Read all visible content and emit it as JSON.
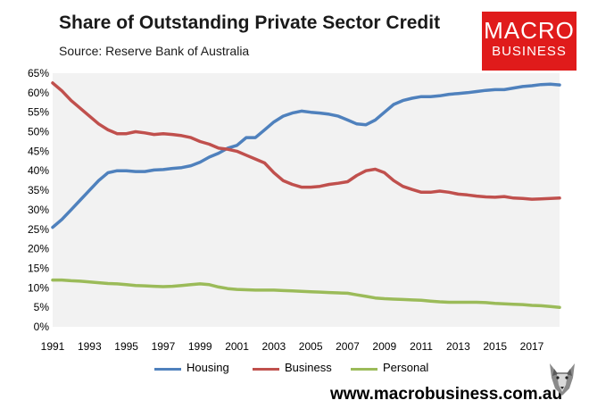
{
  "header": {
    "title": "Share of Outstanding Private Sector Credit",
    "subtitle": "Source: Reserve Bank of Australia"
  },
  "logo": {
    "line1": "MACRO",
    "line2": "BUSINESS"
  },
  "footer": {
    "url": "www.macrobusiness.com.au"
  },
  "colors": {
    "housing": "#4f81bd",
    "business": "#c0504d",
    "personal": "#9bbb59",
    "plot_background": "#f2f2f2",
    "logo_red": "#e01b1b"
  },
  "chart_data": {
    "type": "line",
    "title": "Share of Outstanding Private Sector Credit",
    "subtitle": "Source: Reserve Bank of Australia",
    "xlim": [
      1991,
      2018.5
    ],
    "ylim": [
      0,
      65
    ],
    "x_ticks": [
      1991,
      1993,
      1995,
      1997,
      1999,
      2001,
      2003,
      2005,
      2007,
      2009,
      2011,
      2013,
      2015,
      2017
    ],
    "y_ticks": [
      0,
      5,
      10,
      15,
      20,
      25,
      30,
      35,
      40,
      45,
      50,
      55,
      60,
      65
    ],
    "y_tick_labels": [
      "0%",
      "5%",
      "10%",
      "15%",
      "20%",
      "25%",
      "30%",
      "35%",
      "40%",
      "45%",
      "50%",
      "55%",
      "60%",
      "65%"
    ],
    "grid": false,
    "legend": "bottom",
    "series": [
      {
        "name": "Housing",
        "color": "#4f81bd",
        "x": [
          1991,
          1991.5,
          1992,
          1992.5,
          1993,
          1993.5,
          1994,
          1994.5,
          1995,
          1995.5,
          1996,
          1996.5,
          1997,
          1997.5,
          1998,
          1998.5,
          1999,
          1999.5,
          2000,
          2000.5,
          2001,
          2001.5,
          2002,
          2002.5,
          2003,
          2003.5,
          2004,
          2004.5,
          2005,
          2005.5,
          2006,
          2006.5,
          2007,
          2007.5,
          2008,
          2008.5,
          2009,
          2009.5,
          2010,
          2010.5,
          2011,
          2011.5,
          2012,
          2012.5,
          2013,
          2013.5,
          2014,
          2014.5,
          2015,
          2015.5,
          2016,
          2016.5,
          2017,
          2017.5,
          2018,
          2018.5
        ],
        "y": [
          25.5,
          27.5,
          30,
          32.5,
          35,
          37.5,
          39.5,
          40,
          40,
          39.8,
          39.8,
          40.2,
          40.3,
          40.6,
          40.8,
          41.3,
          42.2,
          43.5,
          44.5,
          45.8,
          46.5,
          48.5,
          48.5,
          50.5,
          52.5,
          54,
          54.8,
          55.3,
          55,
          54.8,
          54.5,
          54,
          53,
          52,
          51.8,
          53,
          55,
          57,
          58,
          58.6,
          59,
          59,
          59.2,
          59.6,
          59.8,
          60,
          60.3,
          60.6,
          60.8,
          60.8,
          61.2,
          61.6,
          61.8,
          62.1,
          62.2,
          62
        ]
      },
      {
        "name": "Business",
        "color": "#c0504d",
        "x": [
          1991,
          1991.5,
          1992,
          1992.5,
          1993,
          1993.5,
          1994,
          1994.5,
          1995,
          1995.5,
          1996,
          1996.5,
          1997,
          1997.5,
          1998,
          1998.5,
          1999,
          1999.5,
          2000,
          2000.5,
          2001,
          2001.5,
          2002,
          2002.5,
          2003,
          2003.5,
          2004,
          2004.5,
          2005,
          2005.5,
          2006,
          2006.5,
          2007,
          2007.5,
          2008,
          2008.5,
          2009,
          2009.5,
          2010,
          2010.5,
          2011,
          2011.5,
          2012,
          2012.5,
          2013,
          2013.5,
          2014,
          2014.5,
          2015,
          2015.5,
          2016,
          2016.5,
          2017,
          2017.5,
          2018,
          2018.5
        ],
        "y": [
          62.5,
          60.5,
          58,
          56,
          54,
          52,
          50.5,
          49.5,
          49.5,
          50,
          49.7,
          49.3,
          49.5,
          49.3,
          49,
          48.5,
          47.5,
          46.8,
          45.8,
          45.5,
          45,
          44,
          43,
          42,
          39.5,
          37.5,
          36.5,
          35.8,
          35.8,
          36,
          36.5,
          36.8,
          37.2,
          38.8,
          40,
          40.4,
          39.5,
          37.5,
          36,
          35.2,
          34.5,
          34.5,
          34.8,
          34.5,
          34,
          33.8,
          33.5,
          33.3,
          33.2,
          33.4,
          33,
          32.9,
          32.7,
          32.8,
          32.9,
          33
        ]
      },
      {
        "name": "Personal",
        "color": "#9bbb59",
        "x": [
          1991,
          1991.5,
          1992,
          1992.5,
          1993,
          1993.5,
          1994,
          1994.5,
          1995,
          1995.5,
          1996,
          1996.5,
          1997,
          1997.5,
          1998,
          1998.5,
          1999,
          1999.5,
          2000,
          2000.5,
          2001,
          2001.5,
          2002,
          2002.5,
          2003,
          2003.5,
          2004,
          2004.5,
          2005,
          2005.5,
          2006,
          2006.5,
          2007,
          2007.5,
          2008,
          2008.5,
          2009,
          2009.5,
          2010,
          2010.5,
          2011,
          2011.5,
          2012,
          2012.5,
          2013,
          2013.5,
          2014,
          2014.5,
          2015,
          2015.5,
          2016,
          2016.5,
          2017,
          2017.5,
          2018,
          2018.5
        ],
        "y": [
          12,
          12,
          11.8,
          11.7,
          11.5,
          11.3,
          11.1,
          11,
          10.8,
          10.6,
          10.5,
          10.4,
          10.3,
          10.4,
          10.6,
          10.8,
          11,
          10.8,
          10.2,
          9.8,
          9.6,
          9.5,
          9.4,
          9.4,
          9.4,
          9.3,
          9.2,
          9.1,
          9,
          8.9,
          8.8,
          8.7,
          8.6,
          8.2,
          7.8,
          7.4,
          7.2,
          7.1,
          7,
          6.9,
          6.8,
          6.6,
          6.4,
          6.3,
          6.3,
          6.3,
          6.3,
          6.2,
          6,
          5.9,
          5.8,
          5.7,
          5.5,
          5.4,
          5.2,
          5
        ]
      }
    ]
  }
}
